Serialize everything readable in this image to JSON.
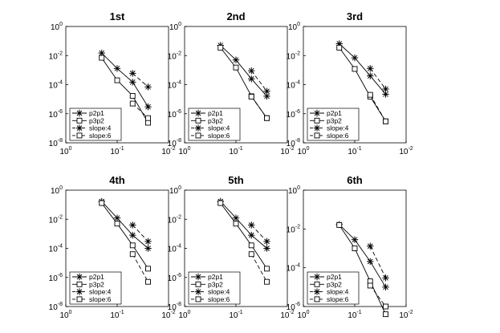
{
  "chart_data": [
    {
      "type": "line",
      "title": "1st",
      "x_scale": "log",
      "y_scale": "log",
      "xlim": [
        1,
        0.01
      ],
      "ylim": [
        1e-08,
        1
      ],
      "x_ticks": [
        {
          "base": "10",
          "exp": "0"
        },
        {
          "base": "10",
          "exp": "-1"
        },
        {
          "base": "10",
          "exp": "-2"
        }
      ],
      "y_ticks": [
        {
          "base": "10",
          "exp": "0"
        },
        {
          "base": "10",
          "exp": "-2"
        },
        {
          "base": "10",
          "exp": "-4"
        },
        {
          "base": "10",
          "exp": "-6"
        },
        {
          "base": "10",
          "exp": "-8"
        }
      ],
      "legend_position": "bottom-left",
      "series": [
        {
          "name": "p2p1",
          "marker": "asterisk",
          "linestyle": "solid",
          "x": [
            0.2,
            0.1,
            0.05,
            0.025
          ],
          "y": [
            0.015,
            0.0013,
            0.00015,
            3e-06
          ]
        },
        {
          "name": "p3p2",
          "marker": "square",
          "linestyle": "solid",
          "x": [
            0.2,
            0.1,
            0.05,
            0.025
          ],
          "y": [
            0.007,
            0.0002,
            1.7e-05,
            2.4e-07
          ]
        },
        {
          "name": "slope:4",
          "marker": "asterisk",
          "linestyle": "dashed",
          "x": [
            0.05,
            0.025
          ],
          "y": [
            0.0006,
            7e-05
          ]
        },
        {
          "name": "slope:6",
          "marker": "square",
          "linestyle": "dashed",
          "x": [
            0.05,
            0.025
          ],
          "y": [
            5e-06,
            5e-07
          ]
        }
      ]
    },
    {
      "type": "line",
      "title": "2nd",
      "x_scale": "log",
      "y_scale": "log",
      "xlim": [
        1,
        0.01
      ],
      "ylim": [
        1e-08,
        1
      ],
      "x_ticks": [
        {
          "base": "10",
          "exp": "0"
        },
        {
          "base": "10",
          "exp": "-1"
        },
        {
          "base": "10",
          "exp": "-2"
        }
      ],
      "y_ticks": [
        {
          "base": "10",
          "exp": "0"
        },
        {
          "base": "10",
          "exp": "-2"
        },
        {
          "base": "10",
          "exp": "-4"
        },
        {
          "base": "10",
          "exp": "-6"
        },
        {
          "base": "10",
          "exp": "-8"
        }
      ],
      "legend_position": "bottom-left",
      "series": [
        {
          "name": "p2p1",
          "marker": "asterisk",
          "linestyle": "solid",
          "x": [
            0.2,
            0.1,
            0.05,
            0.025
          ],
          "y": [
            0.05,
            0.005,
            0.00025,
            1.6e-05
          ]
        },
        {
          "name": "p3p2",
          "marker": "square",
          "linestyle": "solid",
          "x": [
            0.2,
            0.1,
            0.05,
            0.025
          ],
          "y": [
            0.035,
            0.0015,
            1.6e-05,
            5e-07
          ]
        },
        {
          "name": "slope:4",
          "marker": "asterisk",
          "linestyle": "dashed",
          "x": [
            0.05,
            0.025
          ],
          "y": [
            0.0009,
            3.5e-05
          ]
        },
        {
          "name": "slope:6",
          "marker": "square",
          "linestyle": "dashed",
          "x": [
            0.05,
            0.025
          ],
          "y": [
            1.5e-05,
            5e-07
          ]
        }
      ]
    },
    {
      "type": "line",
      "title": "3rd",
      "x_scale": "log",
      "y_scale": "log",
      "xlim": [
        1,
        0.01
      ],
      "ylim": [
        1e-08,
        1
      ],
      "x_ticks": [
        {
          "base": "10",
          "exp": "0"
        },
        {
          "base": "10",
          "exp": "-1"
        },
        {
          "base": "10",
          "exp": "-2"
        }
      ],
      "y_ticks": [
        {
          "base": "10",
          "exp": "0"
        },
        {
          "base": "10",
          "exp": "-2"
        },
        {
          "base": "10",
          "exp": "-4"
        },
        {
          "base": "10",
          "exp": "-6"
        },
        {
          "base": "10",
          "exp": "-8"
        }
      ],
      "legend_position": "bottom-left",
      "series": [
        {
          "name": "p2p1",
          "marker": "asterisk",
          "linestyle": "solid",
          "x": [
            0.2,
            0.1,
            0.05,
            0.025
          ],
          "y": [
            0.065,
            0.007,
            0.0004,
            2.2e-05
          ]
        },
        {
          "name": "p3p2",
          "marker": "square",
          "linestyle": "solid",
          "x": [
            0.2,
            0.1,
            0.05,
            0.025
          ],
          "y": [
            0.035,
            0.0012,
            1.5e-05,
            3e-07
          ]
        },
        {
          "name": "slope:4",
          "marker": "asterisk",
          "linestyle": "dashed",
          "x": [
            0.05,
            0.025
          ],
          "y": [
            0.0013,
            5e-05
          ]
        },
        {
          "name": "slope:6",
          "marker": "square",
          "linestyle": "dashed",
          "x": [
            0.05,
            0.025
          ],
          "y": [
            2e-05,
            3e-07
          ]
        }
      ]
    },
    {
      "type": "line",
      "title": "4th",
      "x_scale": "log",
      "y_scale": "log",
      "xlim": [
        1,
        0.01
      ],
      "ylim": [
        1e-08,
        1
      ],
      "x_ticks": [
        {
          "base": "10",
          "exp": "0"
        },
        {
          "base": "10",
          "exp": "-1"
        },
        {
          "base": "10",
          "exp": "-2"
        }
      ],
      "y_ticks": [
        {
          "base": "10",
          "exp": "0"
        },
        {
          "base": "10",
          "exp": "-2"
        },
        {
          "base": "10",
          "exp": "-4"
        },
        {
          "base": "10",
          "exp": "-6"
        },
        {
          "base": "10",
          "exp": "-8"
        }
      ],
      "legend_position": "bottom-left",
      "series": [
        {
          "name": "p2p1",
          "marker": "asterisk",
          "linestyle": "solid",
          "x": [
            0.2,
            0.1,
            0.05,
            0.025
          ],
          "y": [
            0.17,
            0.0122,
            0.0008,
            0.0001
          ]
        },
        {
          "name": "p3p2",
          "marker": "square",
          "linestyle": "solid",
          "x": [
            0.2,
            0.1,
            0.05,
            0.025
          ],
          "y": [
            0.13,
            0.005,
            0.00016,
            4e-06
          ]
        },
        {
          "name": "slope:4",
          "marker": "asterisk",
          "linestyle": "dashed",
          "x": [
            0.05,
            0.025
          ],
          "y": [
            0.004,
            0.0003
          ]
        },
        {
          "name": "slope:6",
          "marker": "square",
          "linestyle": "dashed",
          "x": [
            0.05,
            0.025
          ],
          "y": [
            4e-05,
            5e-07
          ]
        }
      ]
    },
    {
      "type": "line",
      "title": "5th",
      "x_scale": "log",
      "y_scale": "log",
      "xlim": [
        1,
        0.01
      ],
      "ylim": [
        1e-08,
        1
      ],
      "x_ticks": [
        {
          "base": "10",
          "exp": "0"
        },
        {
          "base": "10",
          "exp": "-1"
        },
        {
          "base": "10",
          "exp": "-2"
        }
      ],
      "y_ticks": [
        {
          "base": "10",
          "exp": "0"
        },
        {
          "base": "10",
          "exp": "-2"
        },
        {
          "base": "10",
          "exp": "-4"
        },
        {
          "base": "10",
          "exp": "-6"
        },
        {
          "base": "10",
          "exp": "-8"
        }
      ],
      "legend_position": "bottom-left",
      "series": [
        {
          "name": "p2p1",
          "marker": "asterisk",
          "linestyle": "solid",
          "x": [
            0.2,
            0.1,
            0.05,
            0.025
          ],
          "y": [
            0.17,
            0.0122,
            0.0008,
            0.0001
          ]
        },
        {
          "name": "p3p2",
          "marker": "square",
          "linestyle": "solid",
          "x": [
            0.2,
            0.1,
            0.05,
            0.025
          ],
          "y": [
            0.13,
            0.005,
            0.00016,
            4e-06
          ]
        },
        {
          "name": "slope:4",
          "marker": "asterisk",
          "linestyle": "dashed",
          "x": [
            0.05,
            0.025
          ],
          "y": [
            0.004,
            0.0003
          ]
        },
        {
          "name": "slope:6",
          "marker": "square",
          "linestyle": "dashed",
          "x": [
            0.05,
            0.025
          ],
          "y": [
            4e-05,
            5e-07
          ]
        }
      ]
    },
    {
      "type": "line",
      "title": "6th",
      "x_scale": "log",
      "y_scale": "log",
      "xlim": [
        1,
        0.01
      ],
      "ylim": [
        1e-06,
        1
      ],
      "x_ticks": [
        {
          "base": "10",
          "exp": "0"
        },
        {
          "base": "10",
          "exp": "-1"
        },
        {
          "base": "10",
          "exp": "-2"
        }
      ],
      "y_ticks": [
        {
          "base": "10",
          "exp": "0"
        },
        {
          "base": "10",
          "exp": "-2"
        },
        {
          "base": "10",
          "exp": "-4"
        },
        {
          "base": "10",
          "exp": "-6"
        }
      ],
      "legend_position": "bottom-left",
      "series": [
        {
          "name": "p2p1",
          "marker": "asterisk",
          "linestyle": "solid",
          "x": [
            0.2,
            0.1,
            0.05,
            0.025
          ],
          "y": [
            0.017,
            0.0028,
            0.00021,
            1e-05
          ]
        },
        {
          "name": "p3p2",
          "marker": "square",
          "linestyle": "solid",
          "x": [
            0.2,
            0.1,
            0.05,
            0.025
          ],
          "y": [
            0.016,
            0.001,
            2e-05,
            4e-07
          ]
        },
        {
          "name": "slope:4",
          "marker": "asterisk",
          "linestyle": "dashed",
          "x": [
            0.05,
            0.025
          ],
          "y": [
            0.0013,
            3e-05
          ]
        },
        {
          "name": "slope:6",
          "marker": "square",
          "linestyle": "dashed",
          "x": [
            0.05,
            0.025
          ],
          "y": [
            1.2e-05,
            1e-06
          ]
        }
      ]
    }
  ]
}
